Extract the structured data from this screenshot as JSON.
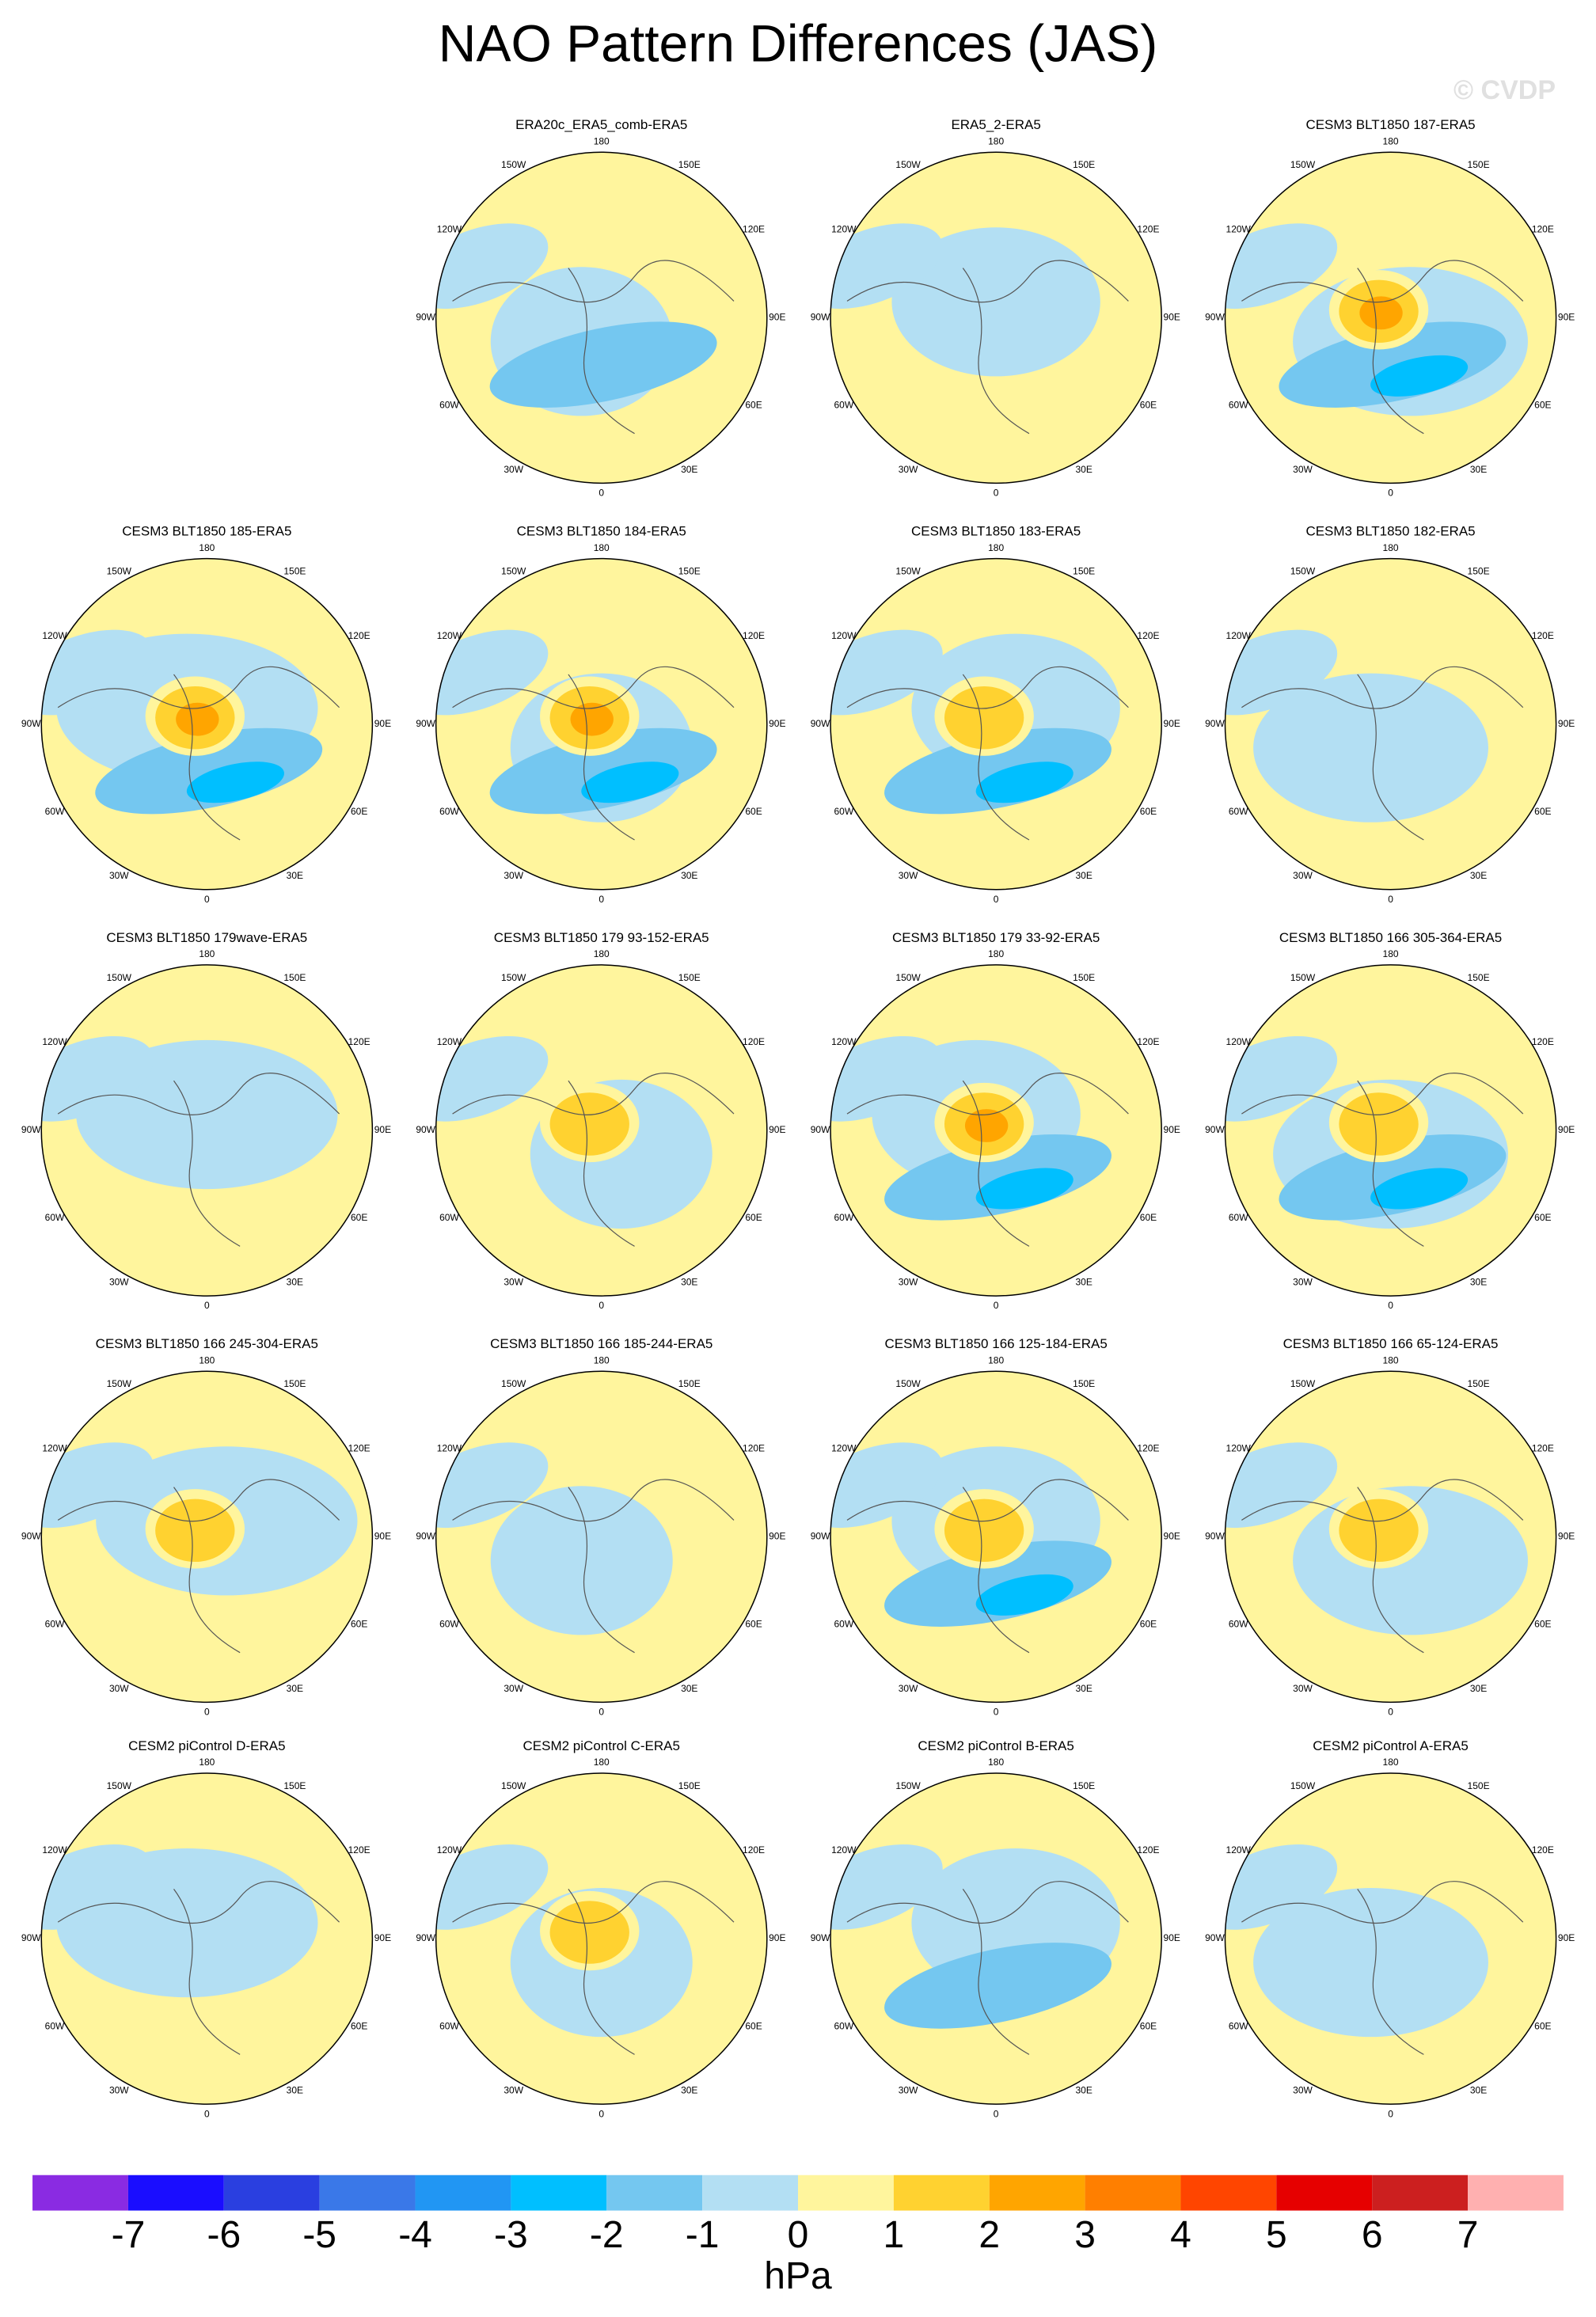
{
  "title": "NAO Pattern Differences (JAS)",
  "watermark": "© CVDP",
  "panels": [
    {
      "title": "ERA20c_ERA5_comb-ERA5"
    },
    {
      "title": "ERA5_2-ERA5"
    },
    {
      "title": "CESM3 BLT1850 187-ERA5"
    },
    {
      "title": "CESM3 BLT1850 185-ERA5"
    },
    {
      "title": "CESM3 BLT1850 184-ERA5"
    },
    {
      "title": "CESM3 BLT1850 183-ERA5"
    },
    {
      "title": "CESM3 BLT1850 182-ERA5"
    },
    {
      "title": "CESM3 BLT1850 179wave-ERA5"
    },
    {
      "title": "CESM3 BLT1850 179 93-152-ERA5"
    },
    {
      "title": "CESM3 BLT1850 179 33-92-ERA5"
    },
    {
      "title": "CESM3 BLT1850 166 305-364-ERA5"
    },
    {
      "title": "CESM3 BLT1850 166 245-304-ERA5"
    },
    {
      "title": "CESM3 BLT1850 166 185-244-ERA5"
    },
    {
      "title": "CESM3 BLT1850 166 125-184-ERA5"
    },
    {
      "title": "CESM3 BLT1850 166 65-124-ERA5"
    },
    {
      "title": "CESM2 piControl D-ERA5"
    },
    {
      "title": "CESM2 piControl C-ERA5"
    },
    {
      "title": "CESM2 piControl B-ERA5"
    },
    {
      "title": "CESM2 piControl A-ERA5"
    }
  ],
  "lon_labels": [
    "180",
    "150E",
    "120E",
    "90E",
    "60E",
    "30E",
    "0",
    "30W",
    "60W",
    "90W",
    "120W",
    "150W"
  ],
  "colorbar": {
    "colors": [
      "#8a2be2",
      "#1a0dff",
      "#2a3fe0",
      "#3a78e8",
      "#2196f3",
      "#00bfff",
      "#74c7f0",
      "#b3dff3",
      "#fff59d",
      "#ffd230",
      "#ffa500",
      "#ff7f00",
      "#ff4500",
      "#e60000",
      "#cc1f1f",
      "#ffb0b0"
    ],
    "ticks": [
      -7,
      -6,
      -5,
      -4,
      -3,
      -2,
      -1,
      0,
      1,
      2,
      3,
      4,
      5,
      6,
      7
    ],
    "unit": "hPa"
  }
}
